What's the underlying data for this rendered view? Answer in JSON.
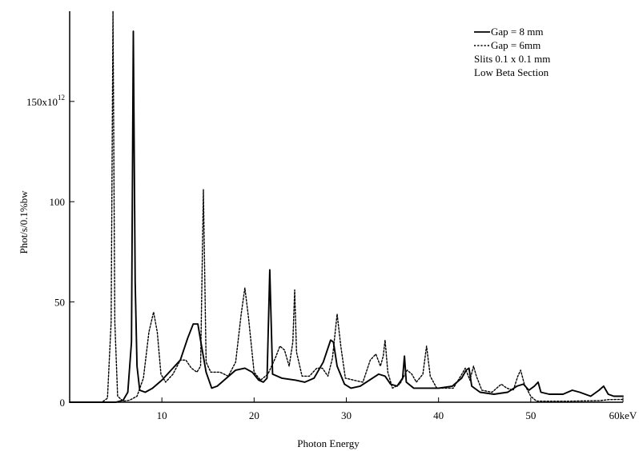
{
  "chart_data": {
    "type": "line",
    "title": "",
    "xlabel": "Photon Energy",
    "ylabel": "Phot/s/0.1%bw",
    "xlim": [
      0,
      60
    ],
    "ylim": [
      0,
      195
    ],
    "grid": false,
    "legend_position": "top-right",
    "x_ticks": [
      {
        "value": 10,
        "label": "10"
      },
      {
        "value": 20,
        "label": "20"
      },
      {
        "value": 30,
        "label": "30"
      },
      {
        "value": 40,
        "label": "40"
      },
      {
        "value": 50,
        "label": "50"
      },
      {
        "value": 60,
        "label": "60keV"
      }
    ],
    "y_ticks": [
      {
        "value": 0,
        "label": "0"
      },
      {
        "value": 50,
        "label": "50"
      },
      {
        "value": 100,
        "label": "100"
      },
      {
        "value": 150,
        "label": "150x10",
        "superscript": "12"
      }
    ],
    "legend_notes": [
      "Slits 0.1 x 0.1 mm",
      "Low Beta Section"
    ],
    "series": [
      {
        "name": "Gap = 8 mm",
        "style": "solid",
        "points": [
          [
            0,
            0
          ],
          [
            5.0,
            0
          ],
          [
            5.8,
            1
          ],
          [
            6.3,
            5
          ],
          [
            6.7,
            30
          ],
          [
            6.9,
            185
          ],
          [
            7.1,
            60
          ],
          [
            7.3,
            18
          ],
          [
            7.6,
            6
          ],
          [
            8.2,
            5
          ],
          [
            9.0,
            7
          ],
          [
            10.0,
            11
          ],
          [
            11.0,
            16
          ],
          [
            12.0,
            21
          ],
          [
            12.8,
            32
          ],
          [
            13.4,
            39
          ],
          [
            13.9,
            39
          ],
          [
            14.3,
            28
          ],
          [
            14.8,
            15
          ],
          [
            15.4,
            7
          ],
          [
            16.0,
            8
          ],
          [
            17.0,
            12
          ],
          [
            18.0,
            16
          ],
          [
            19.0,
            17
          ],
          [
            19.8,
            15
          ],
          [
            20.5,
            11
          ],
          [
            21.0,
            10
          ],
          [
            21.4,
            12
          ],
          [
            21.7,
            66
          ],
          [
            22.0,
            14
          ],
          [
            23.0,
            12
          ],
          [
            24.5,
            11
          ],
          [
            25.5,
            10
          ],
          [
            26.5,
            12
          ],
          [
            27.5,
            20
          ],
          [
            28.3,
            31
          ],
          [
            28.6,
            30
          ],
          [
            29.0,
            18
          ],
          [
            29.8,
            9
          ],
          [
            30.5,
            7
          ],
          [
            31.5,
            8
          ],
          [
            32.5,
            11
          ],
          [
            33.5,
            14
          ],
          [
            34.2,
            13
          ],
          [
            34.8,
            9
          ],
          [
            35.5,
            8
          ],
          [
            36.1,
            12
          ],
          [
            36.3,
            23
          ],
          [
            36.5,
            10
          ],
          [
            37.3,
            7
          ],
          [
            38.5,
            7
          ],
          [
            40.0,
            7
          ],
          [
            41.5,
            8
          ],
          [
            42.5,
            12
          ],
          [
            43.0,
            16
          ],
          [
            43.3,
            17
          ],
          [
            43.6,
            8
          ],
          [
            44.5,
            5
          ],
          [
            46.0,
            4
          ],
          [
            47.5,
            5
          ],
          [
            48.5,
            8
          ],
          [
            49.2,
            9
          ],
          [
            49.8,
            6
          ],
          [
            50.4,
            8
          ],
          [
            50.8,
            10
          ],
          [
            51.1,
            5
          ],
          [
            52.0,
            4
          ],
          [
            53.5,
            4
          ],
          [
            54.5,
            6
          ],
          [
            55.3,
            5
          ],
          [
            56.5,
            3
          ],
          [
            57.4,
            6
          ],
          [
            57.9,
            8
          ],
          [
            58.4,
            4
          ],
          [
            59.0,
            3
          ],
          [
            60.0,
            3
          ]
        ]
      },
      {
        "name": "Gap = 6mm",
        "style": "dotted",
        "points": [
          [
            0,
            0
          ],
          [
            3.5,
            0
          ],
          [
            4.1,
            2
          ],
          [
            4.5,
            40
          ],
          [
            4.7,
            195
          ],
          [
            4.9,
            40
          ],
          [
            5.2,
            3
          ],
          [
            5.8,
            0.5
          ],
          [
            6.5,
            1
          ],
          [
            7.3,
            3
          ],
          [
            8.0,
            12
          ],
          [
            8.6,
            35
          ],
          [
            9.1,
            45
          ],
          [
            9.5,
            35
          ],
          [
            9.9,
            14
          ],
          [
            10.4,
            10
          ],
          [
            11.2,
            14
          ],
          [
            12.0,
            21
          ],
          [
            12.6,
            21
          ],
          [
            13.2,
            17
          ],
          [
            13.8,
            15
          ],
          [
            14.2,
            18
          ],
          [
            14.5,
            106
          ],
          [
            14.8,
            20
          ],
          [
            15.3,
            15
          ],
          [
            16.3,
            15
          ],
          [
            17.2,
            13
          ],
          [
            18.0,
            20
          ],
          [
            18.6,
            44
          ],
          [
            19.0,
            57
          ],
          [
            19.4,
            42
          ],
          [
            20.0,
            15
          ],
          [
            20.7,
            11
          ],
          [
            21.5,
            14
          ],
          [
            22.3,
            22
          ],
          [
            22.8,
            28
          ],
          [
            23.3,
            26
          ],
          [
            23.8,
            18
          ],
          [
            24.2,
            30
          ],
          [
            24.4,
            56
          ],
          [
            24.6,
            25
          ],
          [
            25.2,
            13
          ],
          [
            26.0,
            13
          ],
          [
            26.8,
            17
          ],
          [
            27.4,
            17
          ],
          [
            28.0,
            13
          ],
          [
            28.5,
            22
          ],
          [
            29.0,
            44
          ],
          [
            29.4,
            28
          ],
          [
            29.9,
            12
          ],
          [
            30.8,
            11
          ],
          [
            31.8,
            10
          ],
          [
            32.6,
            21
          ],
          [
            33.2,
            24
          ],
          [
            33.7,
            18
          ],
          [
            34.0,
            23
          ],
          [
            34.2,
            31
          ],
          [
            34.5,
            15
          ],
          [
            35.0,
            7
          ],
          [
            35.8,
            9
          ],
          [
            36.6,
            16
          ],
          [
            37.1,
            14
          ],
          [
            37.6,
            10
          ],
          [
            38.3,
            14
          ],
          [
            38.7,
            28
          ],
          [
            39.1,
            13
          ],
          [
            39.8,
            7
          ],
          [
            40.6,
            7
          ],
          [
            41.6,
            7
          ],
          [
            42.4,
            13
          ],
          [
            42.9,
            17
          ],
          [
            43.4,
            11
          ],
          [
            43.8,
            18
          ],
          [
            44.1,
            13
          ],
          [
            44.7,
            6
          ],
          [
            45.8,
            5
          ],
          [
            46.8,
            9
          ],
          [
            47.4,
            7
          ],
          [
            48.1,
            6
          ],
          [
            48.6,
            13
          ],
          [
            48.9,
            16
          ],
          [
            49.3,
            9
          ],
          [
            50.0,
            3
          ],
          [
            50.6,
            0.6
          ],
          [
            51.5,
            0.5
          ],
          [
            54.0,
            0.5
          ],
          [
            57.5,
            0.8
          ],
          [
            58.5,
            1.3
          ],
          [
            60.0,
            1.4
          ]
        ]
      }
    ]
  }
}
